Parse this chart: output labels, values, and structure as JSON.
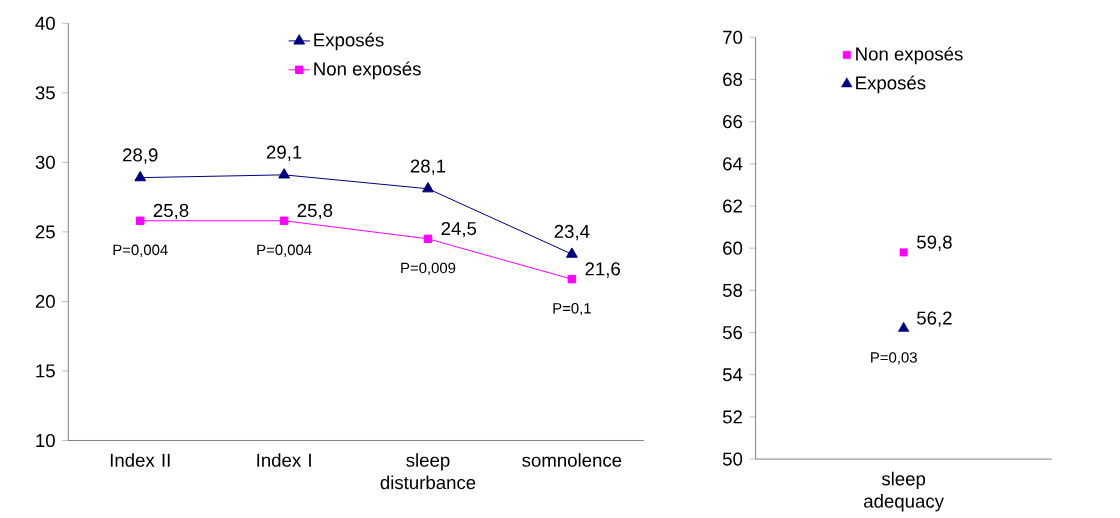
{
  "chart_data": [
    {
      "type": "line",
      "categories": [
        "Index II",
        "Index I",
        "sleep disturbance",
        "somnolence"
      ],
      "series": [
        {
          "name": "Exposés",
          "color": "#000080",
          "marker": "triangle",
          "values": [
            28.9,
            29.1,
            28.1,
            23.4
          ],
          "value_labels": [
            "28,9",
            "29,1",
            "28,1",
            "23,4"
          ]
        },
        {
          "name": "Non exposés",
          "color": "#ff00ff",
          "marker": "square",
          "values": [
            25.8,
            25.8,
            24.5,
            21.6
          ],
          "value_labels": [
            "25,8",
            "25,8",
            "24,5",
            "21,6"
          ]
        }
      ],
      "ylim": [
        10,
        40
      ],
      "yticks": [
        10,
        15,
        20,
        25,
        30,
        35,
        40
      ],
      "grid": false,
      "legend": "top",
      "annotations": [
        "P=0,004",
        "P=0,004",
        "P=0,009",
        "P=0,1"
      ]
    },
    {
      "type": "scatter",
      "categories": [
        "sleep adequacy"
      ],
      "series": [
        {
          "name": "Non exposés",
          "color": "#ff00ff",
          "marker": "square",
          "values": [
            59.8
          ],
          "value_labels": [
            "59,8"
          ]
        },
        {
          "name": "Exposés",
          "color": "#000080",
          "marker": "triangle",
          "values": [
            56.2
          ],
          "value_labels": [
            "56,2"
          ]
        }
      ],
      "ylim": [
        50,
        70
      ],
      "yticks": [
        50,
        52,
        54,
        56,
        58,
        60,
        62,
        64,
        66,
        68,
        70
      ],
      "grid": false,
      "legend": "top",
      "annotations": [
        "P=0,03"
      ]
    }
  ]
}
